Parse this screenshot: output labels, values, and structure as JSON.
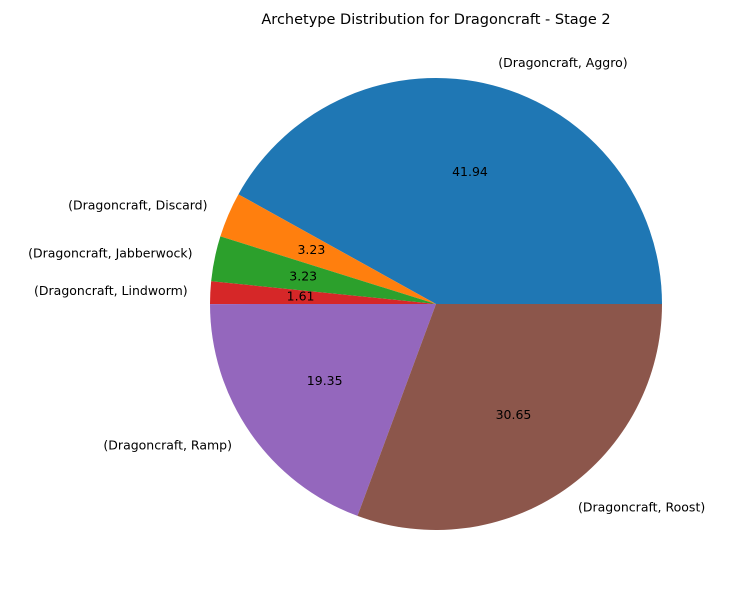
{
  "chart_data": {
    "type": "pie",
    "title": "Archetype Distribution for Dragoncraft - Stage 2",
    "labels": [
      "(Dragoncraft, Aggro)",
      "(Dragoncraft, Discard)",
      "(Dragoncraft, Jabberwock)",
      "(Dragoncraft, Lindworm)",
      "(Dragoncraft, Ramp)",
      "(Dragoncraft, Roost)"
    ],
    "values": [
      41.94,
      3.23,
      3.23,
      1.61,
      19.35,
      30.65
    ],
    "value_labels": [
      "41.94",
      "3.23",
      "3.23",
      "1.61",
      "19.35",
      "30.65"
    ],
    "colors": [
      "#1f77b4",
      "#ff7f0e",
      "#2ca02c",
      "#d62728",
      "#9467bd",
      "#8c564b"
    ],
    "start_angle_deg": 0,
    "direction": "counterclockwise",
    "legend": "none"
  }
}
